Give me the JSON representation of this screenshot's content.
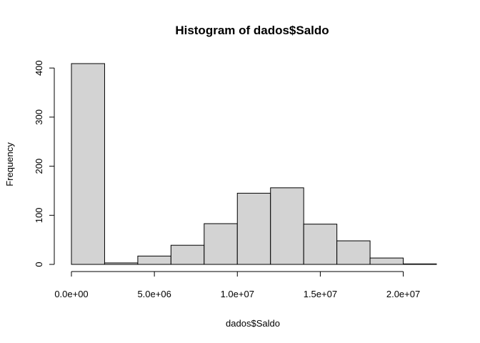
{
  "chart_data": {
    "type": "bar",
    "title": "Histogram of dados$Saldo",
    "xlabel": "dados$Saldo",
    "ylabel": "Frequency",
    "bin_edges": [
      0,
      2000000,
      4000000,
      6000000,
      8000000,
      10000000,
      12000000,
      14000000,
      16000000,
      18000000,
      20000000,
      22000000
    ],
    "values": [
      409,
      3,
      17,
      39,
      83,
      145,
      156,
      82,
      48,
      13,
      1
    ],
    "xlim": [
      0,
      22000000
    ],
    "ylim": [
      0,
      409
    ],
    "x_ticks": [
      0,
      5000000,
      10000000,
      15000000,
      20000000
    ],
    "x_tick_labels": [
      "0.0e+00",
      "5.0e+06",
      "1.0e+07",
      "1.5e+07",
      "2.0e+07"
    ],
    "y_ticks": [
      0,
      100,
      200,
      300,
      400
    ],
    "y_tick_labels": [
      "0",
      "100",
      "200",
      "300",
      "400"
    ],
    "fill_color": "#d3d3d3",
    "stroke_color": "#000000",
    "grid": false,
    "legend": "none"
  }
}
